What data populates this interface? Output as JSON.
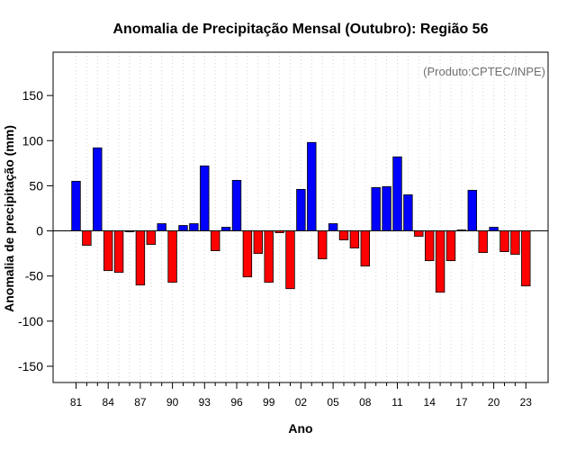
{
  "chart_data": {
    "type": "bar",
    "title": "Anomalia de Precipitação Mensal (Outubro): Região 56",
    "source_note": "(Produto:CPTEC/INPE)",
    "xlabel": "Ano",
    "ylabel": "Anomalia de precipitação (mm)",
    "ylim": [
      -168,
      198
    ],
    "yticks": [
      -150,
      -100,
      -50,
      0,
      50,
      100,
      150
    ],
    "grid": "vertical dotted",
    "categories": [
      "81",
      "82",
      "83",
      "84",
      "85",
      "86",
      "87",
      "88",
      "89",
      "90",
      "91",
      "92",
      "93",
      "94",
      "95",
      "96",
      "97",
      "98",
      "99",
      "00",
      "01",
      "02",
      "03",
      "04",
      "05",
      "06",
      "07",
      "08",
      "09",
      "10",
      "11",
      "12",
      "13",
      "14",
      "15",
      "16",
      "17",
      "18",
      "19",
      "20",
      "21",
      "22",
      "23"
    ],
    "xtick_labels": [
      "81",
      "84",
      "87",
      "90",
      "93",
      "96",
      "99",
      "02",
      "05",
      "08",
      "11",
      "14",
      "17",
      "20",
      "23"
    ],
    "values": [
      55,
      -16,
      92,
      -44,
      -46,
      -1,
      -60,
      -15,
      8,
      -57,
      6,
      8,
      72,
      -22,
      4,
      56,
      -51,
      -25,
      -57,
      -2,
      -64,
      46,
      98,
      -31,
      8,
      -10,
      -19,
      -39,
      48,
      49,
      82,
      40,
      -6,
      -33,
      -68,
      -33,
      1,
      45,
      -24,
      4,
      -23,
      -26,
      -61
    ],
    "colors": {
      "positive": "#0000ff",
      "negative": "#ff0000",
      "outline": "#000000",
      "grid": "#d3d3d3",
      "source": "#6e6e6e"
    }
  }
}
